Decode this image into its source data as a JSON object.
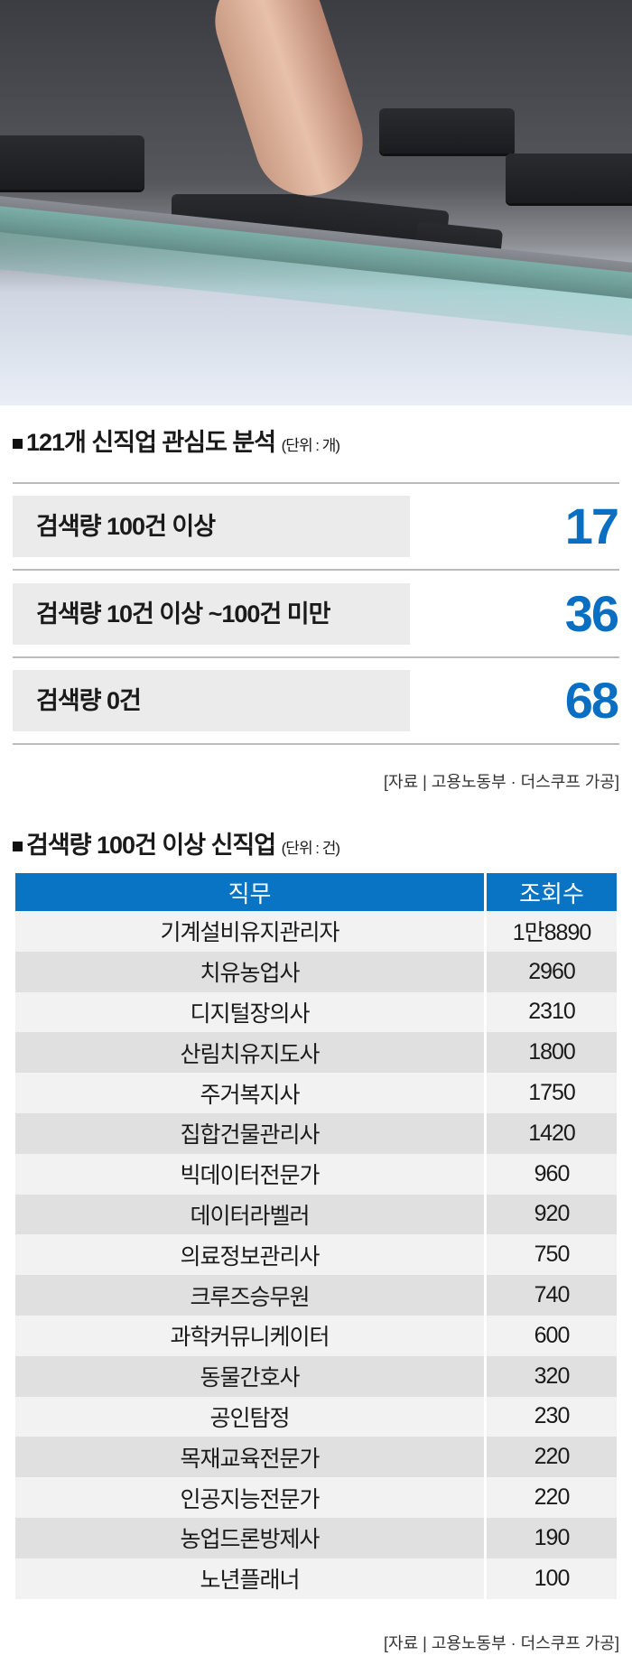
{
  "section1": {
    "title": "121개 신직업 관심도 분석",
    "unit": "(단위 : 개)",
    "rows": [
      {
        "label": "검색량 100건 이상",
        "value": "17"
      },
      {
        "label": "검색량 10건 이상 ~100건 미만",
        "value": "36"
      },
      {
        "label": "검색량 0건",
        "value": "68"
      }
    ],
    "source": "[자료 | 고용노동부 · 더스쿠프 가공]"
  },
  "section2": {
    "title": "검색량 100건 이상 신직업",
    "unit": "(단위 : 건)",
    "source": "[자료 | 고용노동부 · 더스쿠프 가공]"
  },
  "colors": {
    "accent": "#0a74c4",
    "row_light": "#f2f2f2",
    "row_dark": "#e0e0e0"
  },
  "chart_data": {
    "type": "table",
    "title": "검색량 100건 이상 신직업",
    "columns": [
      "직무",
      "조회수"
    ],
    "rows": [
      [
        "기계설비유지관리자",
        "1만8890"
      ],
      [
        "치유농업사",
        "2960"
      ],
      [
        "디지털장의사",
        "2310"
      ],
      [
        "산림치유지도사",
        "1800"
      ],
      [
        "주거복지사",
        "1750"
      ],
      [
        "집합건물관리사",
        "1420"
      ],
      [
        "빅데이터전문가",
        "960"
      ],
      [
        "데이터라벨러",
        "920"
      ],
      [
        "의료정보관리사",
        "750"
      ],
      [
        "크루즈승무원",
        "740"
      ],
      [
        "과학커뮤니케이터",
        "600"
      ],
      [
        "동물간호사",
        "320"
      ],
      [
        "공인탐정",
        "230"
      ],
      [
        "목재교육전문가",
        "220"
      ],
      [
        "인공지능전문가",
        "220"
      ],
      [
        "농업드론방제사",
        "190"
      ],
      [
        "노년플래너",
        "100"
      ]
    ]
  }
}
